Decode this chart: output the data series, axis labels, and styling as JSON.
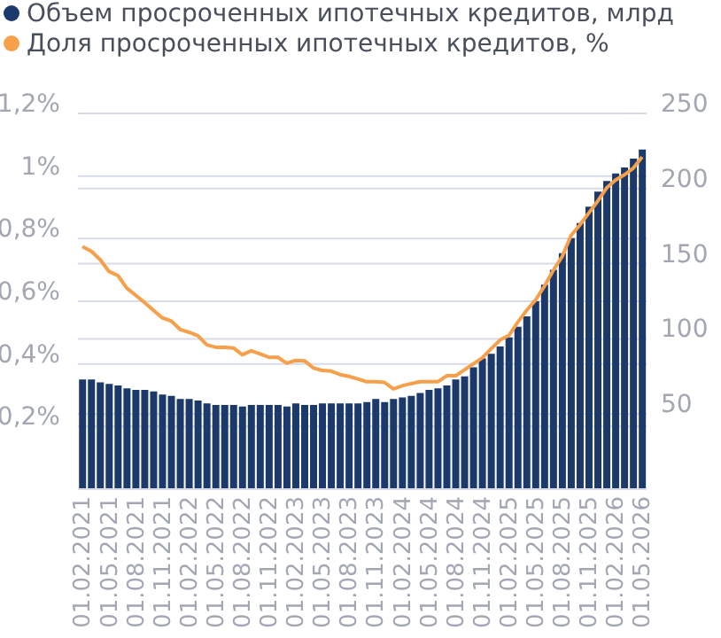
{
  "chart_data": {
    "type": "bar",
    "categories": [
      "01.02.2021",
      null,
      null,
      "01.05.2021",
      null,
      null,
      "01.08.2021",
      null,
      null,
      "01.11.2021",
      null,
      null,
      "01.02.2022",
      null,
      null,
      "01.05.2022",
      null,
      null,
      "01.08.2022",
      null,
      null,
      "01.11.2022",
      null,
      null,
      "01.02.2023",
      null,
      null,
      "01.05.2023",
      null,
      null,
      "01.08.2023",
      null,
      null,
      "01.11.2023",
      null,
      null,
      "01.02.2024",
      null,
      null,
      "01.05.2024",
      null,
      null,
      "01.08.2024",
      null,
      null,
      "01.11.2024",
      null,
      null,
      "01.02.2025",
      null,
      null,
      "01.05.2025",
      null,
      null,
      "01.08.2025",
      null,
      null,
      "01.11.2025",
      null,
      null,
      "01.02.2026",
      null,
      null,
      "01.05.2026"
    ],
    "series": [
      {
        "name": "Объем просроченных ипотечных кредитов, млрд",
        "axis": "y2",
        "color": "#1b3a6b",
        "values": [
          73,
          73,
          71,
          70,
          69,
          67,
          66,
          66,
          65,
          63,
          62,
          60,
          60,
          59,
          57,
          56,
          56,
          56,
          55,
          56,
          56,
          56,
          56,
          55,
          57,
          56,
          56,
          57,
          57,
          57,
          57,
          57,
          58,
          60,
          58,
          60,
          61,
          62,
          64,
          66,
          67,
          69,
          73,
          75,
          81,
          87,
          90,
          95,
          101,
          108,
          115,
          125,
          136,
          146,
          157,
          167,
          177,
          188,
          198,
          205,
          210,
          214,
          220,
          226
        ]
      },
      {
        "name": "Доля просроченных ипотечных кредитов, %",
        "type": "line",
        "axis": "y",
        "color": "#f7a04b",
        "values": [
          0.775,
          0.76,
          0.733,
          0.695,
          0.682,
          0.642,
          0.619,
          0.596,
          0.571,
          0.547,
          0.537,
          0.51,
          0.501,
          0.49,
          0.461,
          0.453,
          0.453,
          0.451,
          0.429,
          0.442,
          0.432,
          0.421,
          0.421,
          0.402,
          0.411,
          0.41,
          0.387,
          0.379,
          0.377,
          0.366,
          0.36,
          0.352,
          0.343,
          0.343,
          0.341,
          0.32,
          0.33,
          0.337,
          0.343,
          0.343,
          0.343,
          0.362,
          0.362,
          0.381,
          0.4,
          0.419,
          0.448,
          0.476,
          0.491,
          0.533,
          0.571,
          0.604,
          0.648,
          0.699,
          0.743,
          0.81,
          0.844,
          0.882,
          0.92,
          0.962,
          0.987,
          1.004,
          1.025,
          1.061
        ]
      }
    ],
    "ylim": [
      0,
      1.2
    ],
    "yticks": [
      {
        "value": 0.2,
        "label": "0,2%"
      },
      {
        "value": 0.4,
        "label": "0,4%"
      },
      {
        "value": 0.6,
        "label": "0,6%"
      },
      {
        "value": 0.8,
        "label": "0,8%"
      },
      {
        "value": 1,
        "label": "1%"
      },
      {
        "value": 1.2,
        "label": "1,2%"
      }
    ],
    "y2lim": [
      0,
      250
    ],
    "y2ticks": [
      50,
      100,
      150,
      200,
      250
    ],
    "grid": "y",
    "legend": "top left",
    "marker": "none",
    "line_style": "solid"
  }
}
